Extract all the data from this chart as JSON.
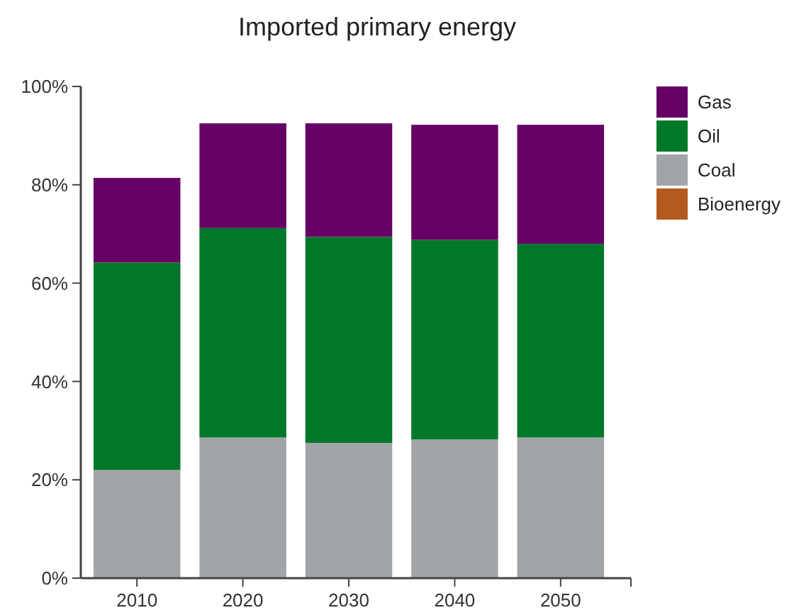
{
  "chart_data": {
    "type": "bar",
    "title": "Imported primary energy",
    "stacked": true,
    "categories": [
      "2010",
      "2020",
      "2030",
      "2040",
      "2050"
    ],
    "series": [
      {
        "name": "Bioenergy",
        "color": "#b35a1f",
        "values": [
          0,
          0,
          0,
          0,
          0
        ]
      },
      {
        "name": "Coal",
        "color": "#a2a5a8",
        "values": [
          22,
          28.6,
          27.5,
          28.2,
          28.6
        ]
      },
      {
        "name": "Oil",
        "color": "#00782a",
        "values": [
          42.2,
          42.6,
          41.9,
          40.6,
          39.4
        ]
      },
      {
        "name": "Gas",
        "color": "#660066",
        "values": [
          17.2,
          21.3,
          23.1,
          23.4,
          24.2
        ]
      }
    ],
    "ylim": [
      0,
      100
    ],
    "yticks": [
      {
        "value": 0,
        "label": "0%"
      },
      {
        "value": 20,
        "label": "20%"
      },
      {
        "value": 40,
        "label": "40%"
      },
      {
        "value": 60,
        "label": "60%"
      },
      {
        "value": 80,
        "label": "80%"
      },
      {
        "value": 100,
        "label": "100%"
      }
    ],
    "grid": false,
    "legend": "top right"
  }
}
